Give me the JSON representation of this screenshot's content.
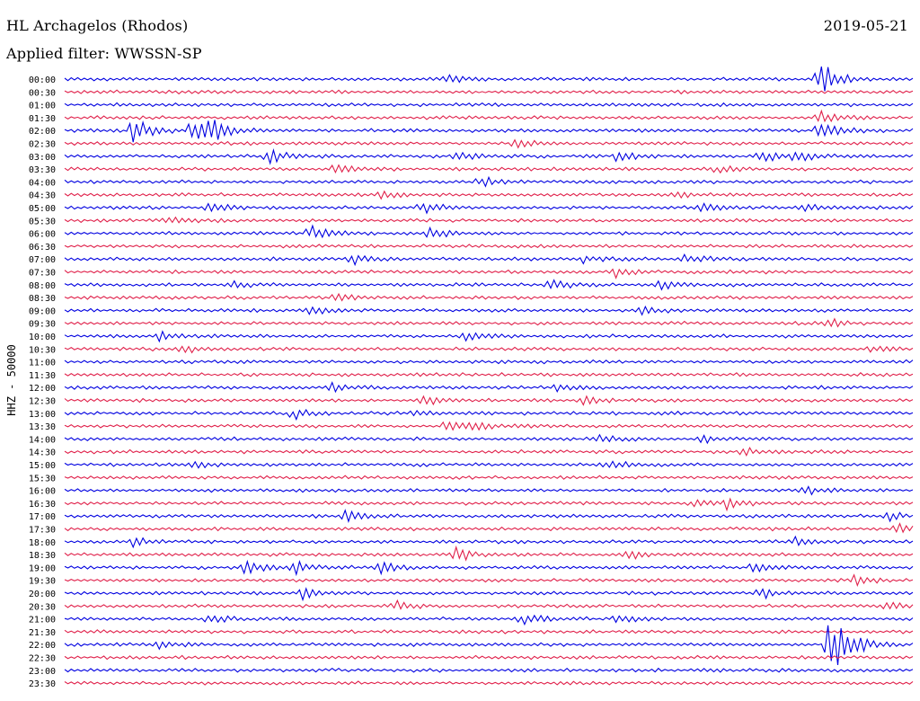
{
  "header": {
    "station": "HL Archagelos (Rhodos)",
    "filter": "Applied filter: WWSSN-SP",
    "date": "2019-05-21"
  },
  "chart_data": {
    "type": "line",
    "ylabel": "HHZ - 50000",
    "colors": [
      "#0000e0",
      "#e0204a"
    ],
    "rows": [
      "00:00",
      "00:30",
      "01:00",
      "01:30",
      "02:00",
      "02:30",
      "03:00",
      "03:30",
      "04:00",
      "04:30",
      "05:00",
      "05:30",
      "06:00",
      "06:30",
      "07:00",
      "07:30",
      "08:00",
      "08:30",
      "09:00",
      "09:30",
      "10:00",
      "10:30",
      "11:00",
      "11:30",
      "12:00",
      "12:30",
      "13:00",
      "13:30",
      "14:00",
      "14:30",
      "15:00",
      "15:30",
      "16:00",
      "16:30",
      "17:00",
      "17:30",
      "18:00",
      "18:30",
      "19:00",
      "19:30",
      "20:00",
      "20:30",
      "21:00",
      "21:30",
      "22:00",
      "22:30",
      "23:00",
      "23:30"
    ],
    "events": [
      {
        "row": 0,
        "t": 0.45,
        "amp": 0.6
      },
      {
        "row": 0,
        "t": 0.89,
        "amp": 3.0
      },
      {
        "row": 3,
        "t": 0.89,
        "amp": 1.0
      },
      {
        "row": 4,
        "t": 0.08,
        "amp": 2.2
      },
      {
        "row": 4,
        "t": 0.15,
        "amp": 1.8
      },
      {
        "row": 4,
        "t": 0.17,
        "amp": 1.6
      },
      {
        "row": 4,
        "t": 0.89,
        "amp": 1.4
      },
      {
        "row": 5,
        "t": 0.53,
        "amp": 0.6
      },
      {
        "row": 6,
        "t": 0.24,
        "amp": 1.2
      },
      {
        "row": 6,
        "t": 0.46,
        "amp": 0.8
      },
      {
        "row": 6,
        "t": 0.65,
        "amp": 0.8
      },
      {
        "row": 6,
        "t": 0.82,
        "amp": 0.9
      },
      {
        "row": 6,
        "t": 0.86,
        "amp": 1.0
      },
      {
        "row": 7,
        "t": 0.32,
        "amp": 1.1
      },
      {
        "row": 7,
        "t": 0.77,
        "amp": 0.6
      },
      {
        "row": 8,
        "t": 0.49,
        "amp": 0.8
      },
      {
        "row": 9,
        "t": 0.37,
        "amp": 0.6
      },
      {
        "row": 9,
        "t": 0.72,
        "amp": 0.6
      },
      {
        "row": 10,
        "t": 0.17,
        "amp": 1.0
      },
      {
        "row": 10,
        "t": 0.42,
        "amp": 1.0
      },
      {
        "row": 10,
        "t": 0.75,
        "amp": 0.8
      },
      {
        "row": 10,
        "t": 0.87,
        "amp": 0.9
      },
      {
        "row": 11,
        "t": 0.12,
        "amp": 0.6
      },
      {
        "row": 12,
        "t": 0.29,
        "amp": 1.2
      },
      {
        "row": 12,
        "t": 0.43,
        "amp": 1.1
      },
      {
        "row": 14,
        "t": 0.34,
        "amp": 0.8
      },
      {
        "row": 14,
        "t": 0.61,
        "amp": 0.6
      },
      {
        "row": 14,
        "t": 0.73,
        "amp": 0.7
      },
      {
        "row": 15,
        "t": 0.65,
        "amp": 0.7
      },
      {
        "row": 16,
        "t": 0.2,
        "amp": 0.5
      },
      {
        "row": 16,
        "t": 0.57,
        "amp": 0.9
      },
      {
        "row": 16,
        "t": 0.7,
        "amp": 0.8
      },
      {
        "row": 17,
        "t": 0.32,
        "amp": 0.6
      },
      {
        "row": 18,
        "t": 0.29,
        "amp": 0.9
      },
      {
        "row": 18,
        "t": 0.68,
        "amp": 0.6
      },
      {
        "row": 19,
        "t": 0.9,
        "amp": 0.7
      },
      {
        "row": 20,
        "t": 0.11,
        "amp": 0.7
      },
      {
        "row": 20,
        "t": 0.47,
        "amp": 0.8
      },
      {
        "row": 21,
        "t": 0.14,
        "amp": 0.7
      },
      {
        "row": 21,
        "t": 0.95,
        "amp": 0.6
      },
      {
        "row": 24,
        "t": 0.31,
        "amp": 0.8
      },
      {
        "row": 24,
        "t": 0.58,
        "amp": 0.7
      },
      {
        "row": 25,
        "t": 0.42,
        "amp": 0.8
      },
      {
        "row": 25,
        "t": 0.61,
        "amp": 0.8
      },
      {
        "row": 26,
        "t": 0.27,
        "amp": 0.8
      },
      {
        "row": 26,
        "t": 0.41,
        "amp": 0.7
      },
      {
        "row": 27,
        "t": 0.45,
        "amp": 1.0
      },
      {
        "row": 27,
        "t": 0.48,
        "amp": 0.8
      },
      {
        "row": 28,
        "t": 0.63,
        "amp": 0.6
      },
      {
        "row": 28,
        "t": 0.75,
        "amp": 0.6
      },
      {
        "row": 29,
        "t": 0.8,
        "amp": 0.6
      },
      {
        "row": 30,
        "t": 0.15,
        "amp": 0.6
      },
      {
        "row": 30,
        "t": 0.64,
        "amp": 0.8
      },
      {
        "row": 32,
        "t": 0.87,
        "amp": 0.7
      },
      {
        "row": 33,
        "t": 0.74,
        "amp": 0.7
      },
      {
        "row": 33,
        "t": 0.78,
        "amp": 0.9
      },
      {
        "row": 34,
        "t": 0.33,
        "amp": 0.9
      },
      {
        "row": 34,
        "t": 0.97,
        "amp": 0.7
      },
      {
        "row": 35,
        "t": 0.98,
        "amp": 1.0
      },
      {
        "row": 36,
        "t": 0.08,
        "amp": 0.7
      },
      {
        "row": 36,
        "t": 0.86,
        "amp": 0.6
      },
      {
        "row": 37,
        "t": 0.46,
        "amp": 1.2
      },
      {
        "row": 37,
        "t": 0.66,
        "amp": 0.9
      },
      {
        "row": 38,
        "t": 0.21,
        "amp": 1.3
      },
      {
        "row": 38,
        "t": 0.27,
        "amp": 1.0
      },
      {
        "row": 38,
        "t": 0.37,
        "amp": 1.2
      },
      {
        "row": 38,
        "t": 0.81,
        "amp": 0.8
      },
      {
        "row": 39,
        "t": 0.93,
        "amp": 0.7
      },
      {
        "row": 40,
        "t": 0.28,
        "amp": 0.9
      },
      {
        "row": 40,
        "t": 0.82,
        "amp": 0.8
      },
      {
        "row": 41,
        "t": 0.39,
        "amp": 0.7
      },
      {
        "row": 41,
        "t": 0.97,
        "amp": 0.8
      },
      {
        "row": 42,
        "t": 0.17,
        "amp": 0.7
      },
      {
        "row": 42,
        "t": 0.54,
        "amp": 0.8
      },
      {
        "row": 42,
        "t": 0.65,
        "amp": 0.6
      },
      {
        "row": 44,
        "t": 0.11,
        "amp": 0.6
      },
      {
        "row": 44,
        "t": 0.9,
        "amp": 3.2
      },
      {
        "row": 44,
        "t": 0.91,
        "amp": 2.6
      }
    ]
  }
}
